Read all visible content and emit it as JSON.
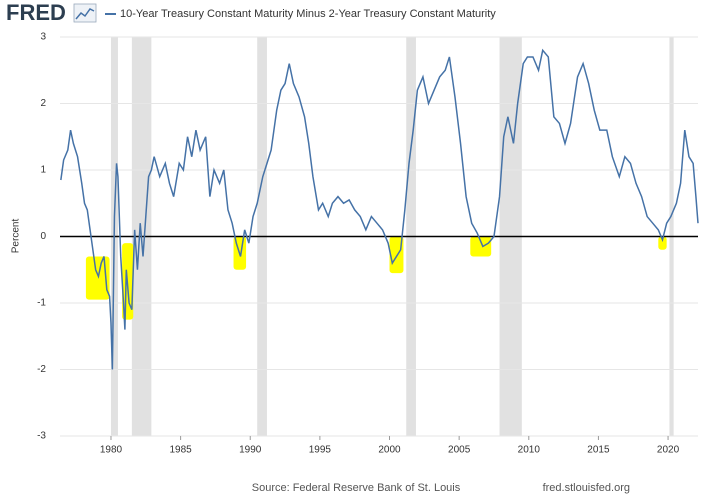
{
  "chart_data": {
    "type": "line",
    "brand": "FRED",
    "title": "10-Year Treasury Constant Maturity Minus 2-Year Treasury Constant Maturity",
    "ylabel": "Percent",
    "source": "Source: Federal Reserve Bank of St. Louis",
    "site": "fred.stlouisfed.org",
    "xlim": [
      1976.34,
      2022.15
    ],
    "xticks": [
      1980,
      1985,
      1990,
      1995,
      2000,
      2005,
      2010,
      2015,
      2020
    ],
    "ylim": [
      -3,
      3
    ],
    "yticks": [
      -3,
      -2,
      -1,
      0,
      1,
      2,
      3
    ],
    "grid": true,
    "zero_line": 0,
    "recession_color": "#e1e1e1",
    "highlight_color": "#ffff00",
    "recessions": [
      [
        1980.0,
        1980.5
      ],
      [
        1981.5,
        1982.9
      ],
      [
        1990.5,
        1991.2
      ],
      [
        2001.2,
        2001.9
      ],
      [
        2007.9,
        2009.5
      ],
      [
        2020.1,
        2020.4
      ]
    ],
    "highlights": [
      {
        "x": [
          1978.2,
          1979.9
        ],
        "y": [
          -0.95,
          -0.3
        ]
      },
      {
        "x": [
          1980.8,
          1981.6
        ],
        "y": [
          -1.25,
          -0.1
        ]
      },
      {
        "x": [
          1988.8,
          1989.7
        ],
        "y": [
          -0.5,
          0
        ]
      },
      {
        "x": [
          2000.0,
          2001.0
        ],
        "y": [
          -0.55,
          0
        ]
      },
      {
        "x": [
          2005.8,
          2007.3
        ],
        "y": [
          -0.3,
          0
        ]
      },
      {
        "x": [
          2019.3,
          2019.9
        ],
        "y": [
          -0.2,
          0
        ]
      }
    ],
    "x": [
      1976.4,
      1976.6,
      1976.9,
      1977.1,
      1977.3,
      1977.6,
      1977.9,
      1978.1,
      1978.3,
      1978.5,
      1978.7,
      1978.9,
      1979.1,
      1979.3,
      1979.5,
      1979.7,
      1979.9,
      1980.0,
      1980.1,
      1980.25,
      1980.4,
      1980.5,
      1980.7,
      1980.9,
      1981.0,
      1981.1,
      1981.3,
      1981.5,
      1981.7,
      1981.9,
      1982.1,
      1982.3,
      1982.5,
      1982.7,
      1982.9,
      1983.1,
      1983.5,
      1983.9,
      1984.2,
      1984.5,
      1984.9,
      1985.2,
      1985.5,
      1985.8,
      1986.1,
      1986.4,
      1986.8,
      1987.1,
      1987.4,
      1987.8,
      1988.1,
      1988.4,
      1988.7,
      1989.0,
      1989.3,
      1989.6,
      1989.9,
      1990.2,
      1990.5,
      1990.9,
      1991.2,
      1991.5,
      1991.9,
      1992.2,
      1992.5,
      1992.8,
      1993.1,
      1993.5,
      1993.9,
      1994.2,
      1994.5,
      1994.9,
      1995.2,
      1995.6,
      1995.9,
      1996.3,
      1996.7,
      1997.1,
      1997.5,
      1997.9,
      1998.3,
      1998.7,
      1999.1,
      1999.5,
      1999.9,
      2000.2,
      2000.5,
      2000.8,
      2001.1,
      2001.4,
      2001.7,
      2002.0,
      2002.4,
      2002.8,
      2003.2,
      2003.6,
      2004.0,
      2004.3,
      2004.7,
      2005.1,
      2005.5,
      2005.9,
      2006.3,
      2006.7,
      2007.1,
      2007.5,
      2007.9,
      2008.2,
      2008.5,
      2008.9,
      2009.2,
      2009.6,
      2009.9,
      2010.3,
      2010.7,
      2011.0,
      2011.4,
      2011.8,
      2012.2,
      2012.6,
      2013.0,
      2013.5,
      2013.9,
      2014.3,
      2014.7,
      2015.1,
      2015.6,
      2016.0,
      2016.5,
      2016.9,
      2017.3,
      2017.7,
      2018.1,
      2018.5,
      2018.9,
      2019.3,
      2019.6,
      2019.9,
      2020.2,
      2020.6,
      2020.9,
      2021.2,
      2021.5,
      2021.8,
      2022.0,
      2022.15
    ],
    "series": [
      {
        "name": "10-Year Treasury Constant Maturity Minus 2-Year Treasury Constant Maturity",
        "color": "#4572a7",
        "values": [
          0.85,
          1.15,
          1.3,
          1.6,
          1.4,
          1.2,
          0.8,
          0.5,
          0.4,
          0.1,
          -0.2,
          -0.5,
          -0.6,
          -0.4,
          -0.3,
          -0.8,
          -0.9,
          -1.3,
          -2.0,
          0.3,
          1.1,
          0.9,
          -0.3,
          -1.0,
          -1.4,
          -0.5,
          -1.0,
          -1.1,
          0.1,
          -0.5,
          0.2,
          -0.3,
          0.3,
          0.9,
          1.0,
          1.2,
          0.9,
          1.1,
          0.8,
          0.6,
          1.1,
          1.0,
          1.5,
          1.2,
          1.6,
          1.3,
          1.5,
          0.6,
          1.0,
          0.8,
          1.0,
          0.4,
          0.2,
          -0.1,
          -0.3,
          0.1,
          -0.1,
          0.3,
          0.5,
          0.9,
          1.1,
          1.3,
          1.9,
          2.2,
          2.3,
          2.6,
          2.3,
          2.1,
          1.8,
          1.4,
          0.9,
          0.4,
          0.5,
          0.3,
          0.5,
          0.6,
          0.5,
          0.55,
          0.4,
          0.3,
          0.1,
          0.3,
          0.2,
          0.1,
          -0.1,
          -0.4,
          -0.3,
          -0.2,
          0.4,
          1.1,
          1.6,
          2.2,
          2.4,
          2.0,
          2.2,
          2.4,
          2.5,
          2.7,
          2.1,
          1.4,
          0.6,
          0.2,
          0.05,
          -0.15,
          -0.1,
          0.0,
          0.6,
          1.5,
          1.8,
          1.4,
          2.0,
          2.6,
          2.7,
          2.7,
          2.5,
          2.8,
          2.7,
          1.8,
          1.7,
          1.4,
          1.7,
          2.4,
          2.6,
          2.3,
          1.9,
          1.6,
          1.6,
          1.2,
          0.9,
          1.2,
          1.1,
          0.8,
          0.6,
          0.3,
          0.2,
          0.1,
          -0.05,
          0.2,
          0.3,
          0.5,
          0.8,
          1.6,
          1.2,
          1.1,
          0.6,
          0.2
        ]
      }
    ]
  }
}
